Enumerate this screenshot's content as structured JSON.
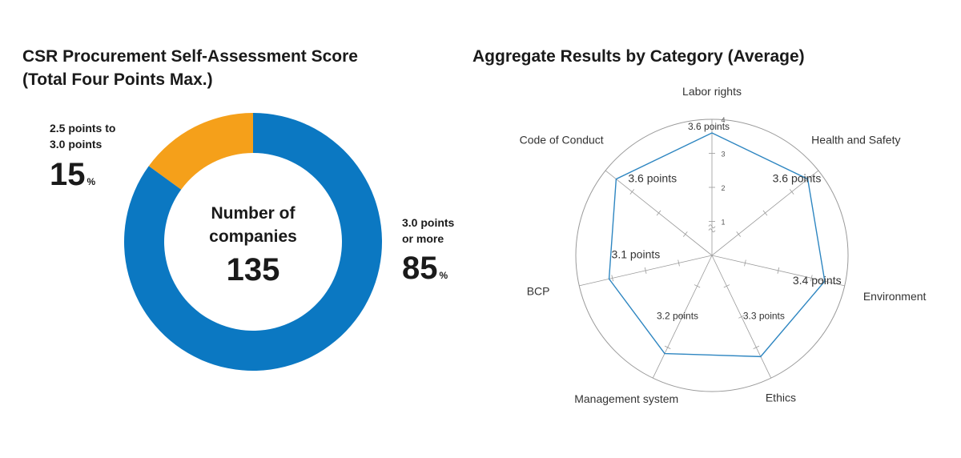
{
  "donut": {
    "title_line1": "CSR Procurement Self-Assessment Score",
    "title_line2": "(Total Four Points Max.)",
    "center_line1": "Number of",
    "center_line2": "companies",
    "center_value": "135",
    "segments": [
      {
        "label_line1": "2.5 points to",
        "label_line2": "3.0 points",
        "percent": "15",
        "unit": "%",
        "color": "#f5a01a"
      },
      {
        "label_line1": "3.0 points",
        "label_line2": "or more",
        "percent": "85",
        "unit": "%",
        "color": "#0b78c2"
      }
    ]
  },
  "chart_data": [
    {
      "type": "pie",
      "title": "CSR Procurement Self-Assessment Score (Total Four Points Max.)",
      "categories": [
        "2.5 points to 3.0 points",
        "3.0 points or more"
      ],
      "values": [
        15,
        85
      ],
      "unit": "%",
      "center_label": "Number of companies",
      "center_value": 135
    },
    {
      "type": "radar",
      "title": "Aggregate Results by Category (Average)",
      "categories": [
        "Labor rights",
        "Health and Safety",
        "Environment",
        "Ethics",
        "Management system",
        "BCP",
        "Code of Conduct"
      ],
      "values": [
        3.6,
        3.6,
        3.4,
        3.3,
        3.2,
        3.1,
        3.6
      ],
      "value_labels": [
        "3.6 points",
        "3.6 points",
        "3.4 points",
        "3.3 points",
        "3.2 points",
        "3.1 points",
        "3.6 points"
      ],
      "axis_ticks": [
        "1",
        "2",
        "3",
        "4"
      ],
      "range": [
        0,
        4
      ],
      "axis_break": true,
      "grid": true,
      "line_color": "#2e86c1"
    }
  ]
}
